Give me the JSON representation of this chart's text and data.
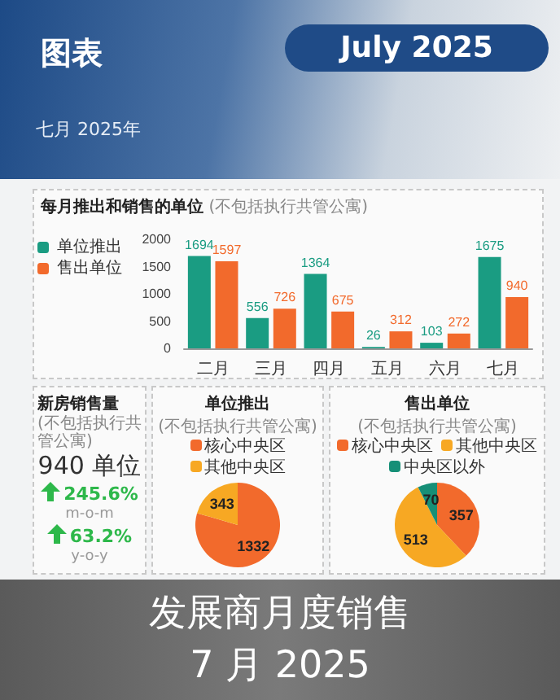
{
  "chart_data": [
    {
      "type": "other",
      "title": "图表",
      "subtitle": "七月 2025年",
      "annotations": [
        "July 2025"
      ]
    },
    {
      "type": "bar",
      "title": "每月推出和销售的单位",
      "subtitle": "(不包括执行共管公寓)",
      "categories": [
        "二月",
        "三月",
        "四月",
        "五月",
        "六月",
        "七月"
      ],
      "series": [
        {
          "name": "单位推出",
          "color": "#1a9c82",
          "values": [
            1694,
            556,
            1364,
            26,
            103,
            1675
          ]
        },
        {
          "name": "售出单位",
          "color": "#f26a2c",
          "values": [
            1597,
            726,
            675,
            312,
            272,
            940
          ]
        }
      ],
      "ylim": [
        0,
        2000
      ],
      "yticks": [
        0,
        500,
        1000,
        1500,
        2000
      ],
      "grid": false,
      "legend": "left",
      "data_labels": true
    },
    {
      "type": "other",
      "title": "新房销售量",
      "subtitle": "(不包括执行共管公寓)",
      "annotations": [
        "940 单位",
        "245.6%",
        "m-o-m",
        "63.2%",
        "y-o-y"
      ]
    },
    {
      "type": "pie",
      "title": "单位推出",
      "subtitle": "(不包括执行共管公寓)",
      "categories": [
        "核心中央区",
        "其他中央区"
      ],
      "values": [
        1332,
        343
      ],
      "colors": [
        "#f26a2c",
        "#f7a823"
      ],
      "legend": "top",
      "data_labels": true
    },
    {
      "type": "pie",
      "title": "售出单位",
      "subtitle": "(不包括执行共管公寓)",
      "categories": [
        "核心中央区",
        "其他中央区",
        "中央区以外"
      ],
      "values": [
        357,
        513,
        70
      ],
      "colors": [
        "#f26a2c",
        "#f7a823",
        "#168f77"
      ],
      "legend": "top",
      "data_labels": true
    },
    {
      "type": "other",
      "title": "发展商月度销售",
      "subtitle": "7 月 2025"
    }
  ]
}
